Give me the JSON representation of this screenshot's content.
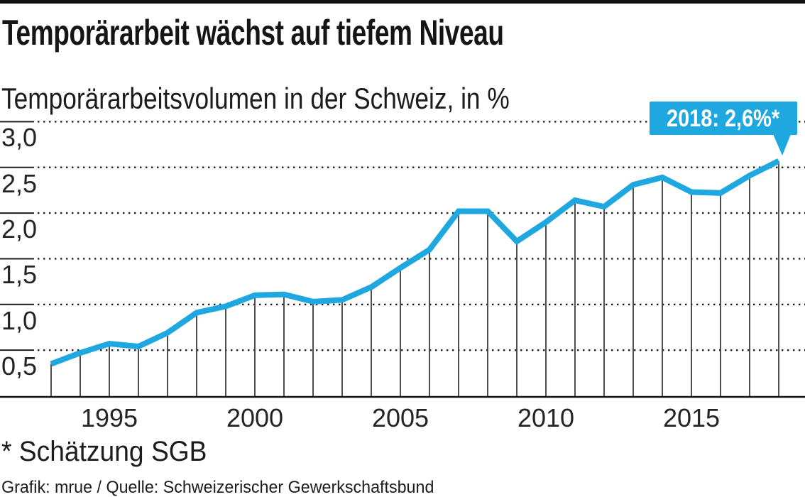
{
  "page": {
    "title": "Temporärarbeit wächst auf tiefem Niveau",
    "subtitle": "Temporärarbeitsvolumen in der Schweiz, in %",
    "footnote": "* Schätzung SGB",
    "credit": "Grafik: mrue / Quelle: Schweizerischer Gewerkschaftsbund"
  },
  "callout": {
    "label": "2018: 2,6%*"
  },
  "colors": {
    "accent_cyan": "#1FA8E0",
    "text": "#1a1a1a",
    "grid_dots": "#1c1c1c",
    "drop_lines": "#3d3d3d",
    "baseline": "#111111"
  },
  "chart_data": {
    "type": "line",
    "title": "Temporärarbeit wächst auf tiefem Niveau",
    "subtitle": "Temporärarbeitsvolumen in der Schweiz, in %",
    "x": [
      1993,
      1994,
      1995,
      1996,
      1997,
      1998,
      1999,
      2000,
      2001,
      2002,
      2003,
      2004,
      2005,
      2006,
      2007,
      2008,
      2009,
      2010,
      2011,
      2012,
      2013,
      2014,
      2015,
      2016,
      2017,
      2018
    ],
    "series": [
      {
        "name": "Temporärarbeitsvolumen in %",
        "values": [
          0.35,
          0.47,
          0.57,
          0.54,
          0.69,
          0.91,
          0.98,
          1.1,
          1.11,
          1.03,
          1.05,
          1.19,
          1.4,
          1.6,
          2.02,
          2.02,
          1.69,
          1.9,
          2.14,
          2.07,
          2.31,
          2.39,
          2.23,
          2.22,
          2.41,
          2.57
        ]
      }
    ],
    "x_tick_labels": [
      "1995",
      "2000",
      "2005",
      "2010",
      "2015"
    ],
    "x_tick_years": [
      1995,
      2000,
      2005,
      2010,
      2015
    ],
    "y_ticks": [
      {
        "value": 3.0,
        "label": "3,0"
      },
      {
        "value": 2.5,
        "label": "2,5"
      },
      {
        "value": 2.0,
        "label": "2,0"
      },
      {
        "value": 1.5,
        "label": "1,5"
      },
      {
        "value": 1.0,
        "label": "1,0"
      },
      {
        "value": 0.5,
        "label": "0,5"
      }
    ],
    "ylim": [
      0,
      3.0
    ],
    "xlim": [
      1993,
      2018
    ],
    "grid": "horizontal-dotted",
    "drop_lines": "vertical line from each data point to baseline",
    "legend": "none",
    "line_color": "#1FA8E0",
    "annotation": {
      "x": 2018,
      "value": 2.6,
      "label": "2018: 2,6%*"
    }
  }
}
